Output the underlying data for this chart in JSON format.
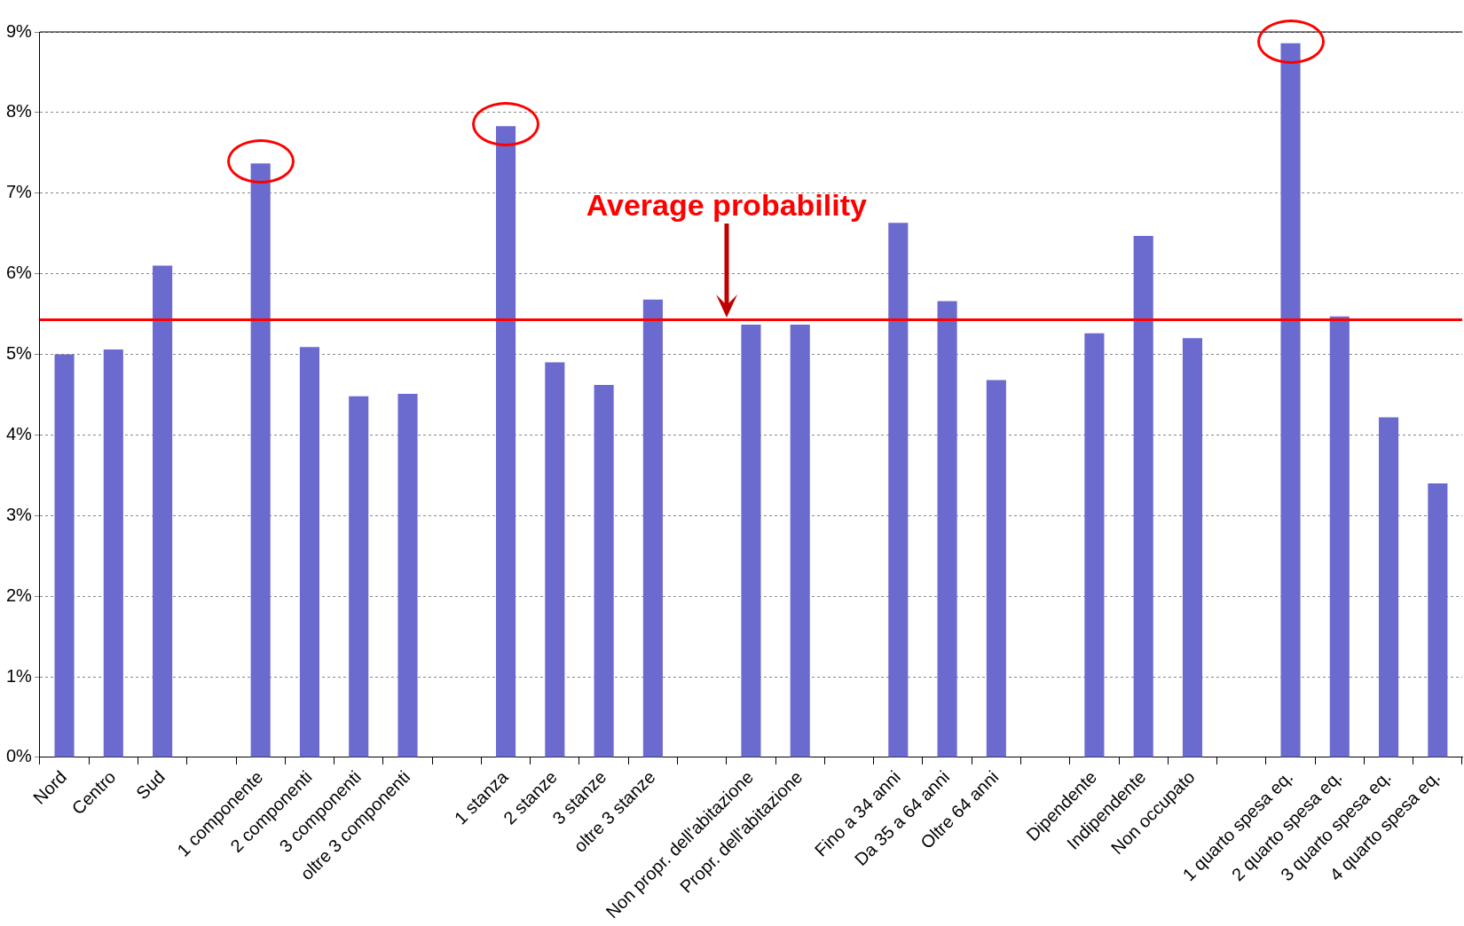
{
  "chart_data": {
    "type": "bar",
    "categories": [
      "Nord",
      "Centro",
      "Sud",
      null,
      "1 componente",
      "2 componenti",
      "3 componenti",
      "oltre 3 componenti",
      null,
      "1 stanza",
      "2 stanze",
      "3 stanze",
      "oltre 3 stanze",
      null,
      "Non propr. dell'abitazione",
      "Propr. dell'abitazione",
      null,
      "Fino a 34 anni",
      "Da 35 a 64 anni",
      "Oltre 64 anni",
      null,
      "Dipendente",
      "Indipendente",
      "Non occupato",
      null,
      "1 quarto spesa eq.",
      "2 quarto spesa eq.",
      "3 quarto spesa eq.",
      "4 quarto spesa eq."
    ],
    "values": [
      5.0,
      5.06,
      6.1,
      null,
      7.37,
      5.09,
      4.48,
      4.51,
      null,
      7.83,
      4.9,
      4.62,
      5.68,
      null,
      5.37,
      5.37,
      null,
      6.63,
      5.66,
      4.68,
      null,
      5.26,
      6.47,
      5.2,
      null,
      8.86,
      5.47,
      4.22,
      3.4
    ],
    "color": "#6b6bcf",
    "ylim": [
      0,
      9
    ],
    "yticks": [
      {
        "value": 0,
        "label": "0%"
      },
      {
        "value": 1,
        "label": "1%"
      },
      {
        "value": 2,
        "label": "2%"
      },
      {
        "value": 3,
        "label": "3%"
      },
      {
        "value": 4,
        "label": "4%"
      },
      {
        "value": 5,
        "label": "5%"
      },
      {
        "value": 6,
        "label": "6%"
      },
      {
        "value": 7,
        "label": "7%"
      },
      {
        "value": 8,
        "label": "8%"
      },
      {
        "value": 9,
        "label": "9%"
      }
    ],
    "grid": "y",
    "legend": false,
    "ref_lines": [
      {
        "axis": "y",
        "value": 5.43,
        "label": "Average probability",
        "color": "#ff0000",
        "line_style": "solid"
      }
    ]
  }
}
